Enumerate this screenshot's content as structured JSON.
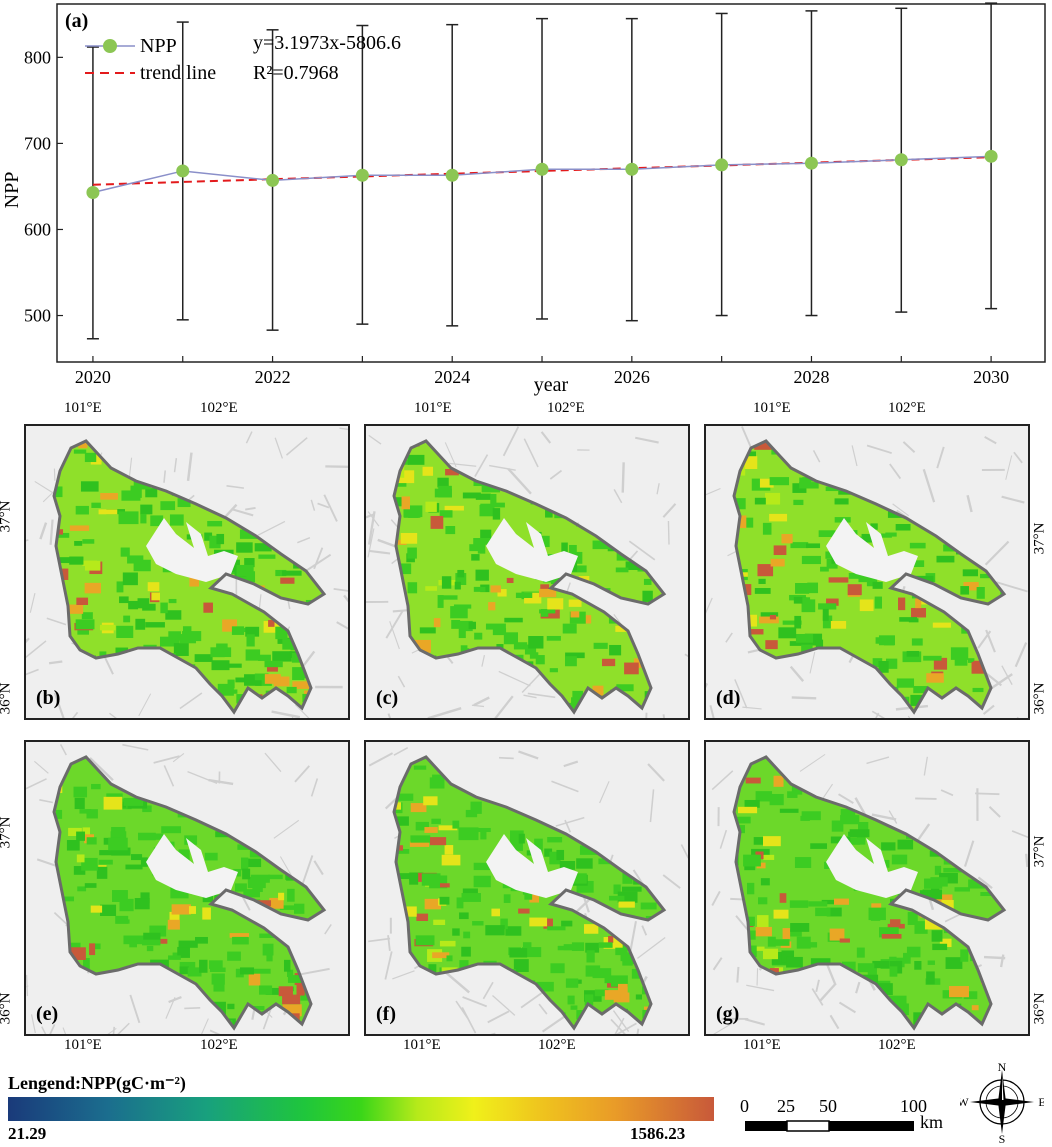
{
  "chart_data": {
    "type": "line",
    "panel_label": "(a)",
    "x": [
      2020,
      2021,
      2022,
      2023,
      2024,
      2025,
      2026,
      2027,
      2028,
      2029,
      2030
    ],
    "series": [
      {
        "name": "NPP",
        "values": [
          643,
          668,
          657,
          663,
          663,
          670,
          670,
          675,
          677,
          681,
          685
        ],
        "error_upper": [
          812,
          841,
          832,
          837,
          838,
          845,
          845,
          851,
          854,
          857,
          863
        ],
        "error_lower": [
          473,
          495,
          483,
          490,
          488,
          496,
          494,
          500,
          500,
          504,
          508
        ]
      },
      {
        "name": "trend line",
        "style": "dashed",
        "values": [
          652.0,
          655.2,
          658.4,
          661.6,
          664.8,
          668.0,
          671.2,
          674.4,
          677.6,
          680.8,
          684.0
        ]
      }
    ],
    "equation": "y=3.1973x-5806.6",
    "r2": "R²=0.7968",
    "xlabel": "year",
    "ylabel": "NPP",
    "x_ticks": [
      "2020",
      "2022",
      "2024",
      "2026",
      "2028",
      "2030"
    ],
    "y_ticks": [
      "500",
      "600",
      "700",
      "800"
    ],
    "xlim": [
      2019.6,
      2030.6
    ],
    "ylim": [
      446,
      862
    ],
    "colors": {
      "npp_line": "#8a8fc9",
      "npp_marker": "#8cc654",
      "trend": "#e31a1c",
      "error_bar": "#222222"
    }
  },
  "maps": {
    "panels": [
      {
        "label": "(b)"
      },
      {
        "label": "(c)"
      },
      {
        "label": "(d)"
      },
      {
        "label": "(e)"
      },
      {
        "label": "(f)"
      },
      {
        "label": "(g)"
      }
    ],
    "lon_labels": [
      "101°E",
      "102°E"
    ],
    "lat_labels": [
      "37°N",
      "36°N"
    ]
  },
  "legend": {
    "title": "Lengend:NPP(gC·m⁻²)",
    "min": "21.29",
    "max": "1586.23"
  },
  "scale_bar": {
    "labels": [
      "0",
      "25",
      "50",
      "100"
    ],
    "unit": "km"
  },
  "compass": {
    "n": "N",
    "s": "S",
    "e": "E",
    "w": "W"
  }
}
